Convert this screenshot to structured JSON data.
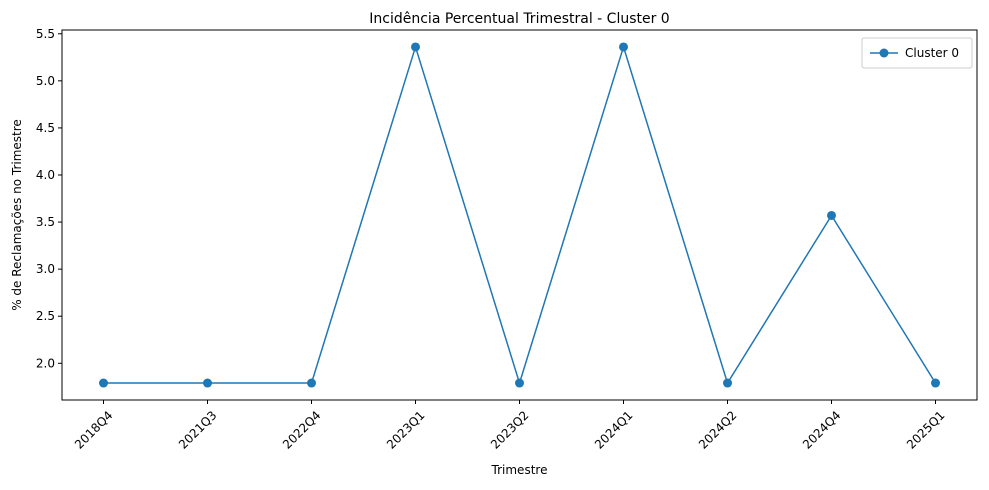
{
  "chart_data": {
    "type": "line",
    "title": "Incidência Percentual Trimestral - Cluster 0",
    "xlabel": "Trimestre",
    "ylabel": "% de Reclamações no Trimestre",
    "categories": [
      "2018Q4",
      "2021Q3",
      "2022Q4",
      "2023Q1",
      "2023Q2",
      "2024Q1",
      "2024Q2",
      "2024Q4",
      "2025Q1"
    ],
    "series": [
      {
        "name": "Cluster 0",
        "color": "#1f77b4",
        "marker": "circle",
        "values": [
          1.79,
          1.79,
          1.79,
          5.36,
          1.79,
          5.36,
          1.79,
          3.57,
          1.79
        ]
      }
    ],
    "ylim": [
      1.61,
      5.54
    ],
    "yticks": [
      2.0,
      2.5,
      3.0,
      3.5,
      4.0,
      4.5,
      5.0,
      5.5
    ],
    "ytick_labels": [
      "2.0",
      "2.5",
      "3.0",
      "3.5",
      "4.0",
      "4.5",
      "5.0",
      "5.5"
    ],
    "xtick_rotation": 45,
    "grid": false,
    "legend_position": "top-right"
  }
}
